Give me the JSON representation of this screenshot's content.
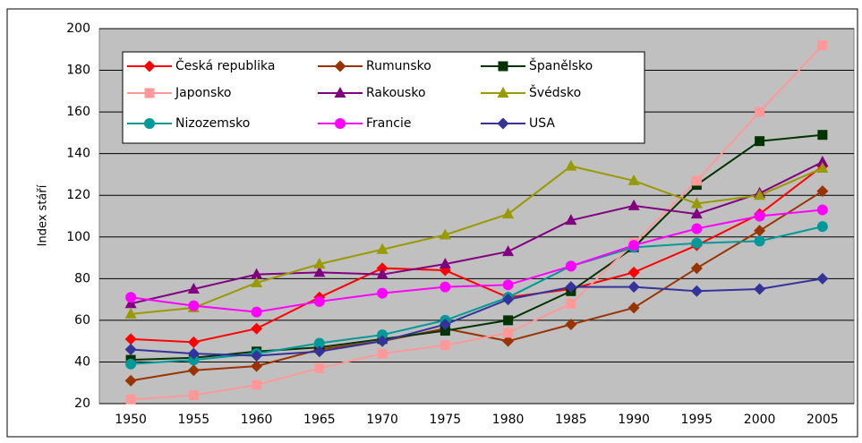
{
  "chart_data": {
    "type": "line",
    "ylabel": "Index stáří",
    "categories": [
      "1950",
      "1955",
      "1960",
      "1965",
      "1970",
      "1975",
      "1980",
      "1985",
      "1990",
      "1995",
      "2000",
      "2005"
    ],
    "ylim": [
      20,
      200
    ],
    "yticks": [
      20,
      40,
      60,
      80,
      100,
      120,
      140,
      160,
      180,
      200
    ],
    "grid": true,
    "series": [
      {
        "name": "Česká republika",
        "color": "#ff0000",
        "marker": "diamond",
        "values": [
          51,
          49.5,
          56,
          71,
          85,
          84,
          71,
          75,
          83,
          96,
          111,
          134
        ]
      },
      {
        "name": "Rumunsko",
        "color": "#993300",
        "marker": "diamond",
        "values": [
          31,
          36,
          38,
          46,
          50,
          56,
          50,
          58,
          66,
          85,
          103,
          122
        ]
      },
      {
        "name": "Španělsko",
        "color": "#003300",
        "marker": "square",
        "values": [
          41,
          42,
          45,
          47,
          51,
          55,
          60,
          74,
          95,
          125,
          146,
          149
        ]
      },
      {
        "name": "Japonsko",
        "color": "#ff9999",
        "marker": "square",
        "values": [
          22,
          24,
          29,
          37,
          44,
          48,
          54,
          68,
          97,
          127,
          160,
          192
        ]
      },
      {
        "name": "Rakousko",
        "color": "#800080",
        "marker": "triangle",
        "values": [
          68,
          75,
          82,
          83,
          82,
          87,
          93,
          108,
          115,
          111,
          121,
          136
        ]
      },
      {
        "name": "Švédsko",
        "color": "#999900",
        "marker": "triangle",
        "values": [
          63,
          66,
          78,
          87,
          94,
          101,
          111,
          134,
          127,
          116,
          120,
          133
        ]
      },
      {
        "name": "Nizozemsko",
        "color": "#009999",
        "marker": "circle",
        "values": [
          39,
          41,
          44,
          49,
          53,
          60,
          71,
          86,
          95,
          97,
          98,
          105
        ]
      },
      {
        "name": "Francie",
        "color": "#ff00ff",
        "marker": "circle",
        "values": [
          71,
          67,
          64,
          69,
          73,
          76,
          77,
          86,
          96,
          104,
          110,
          113
        ]
      },
      {
        "name": "USA",
        "color": "#333399",
        "marker": "diamond",
        "values": [
          46,
          44,
          43,
          45,
          50,
          58,
          70,
          76,
          76,
          74,
          75,
          80
        ]
      }
    ]
  }
}
